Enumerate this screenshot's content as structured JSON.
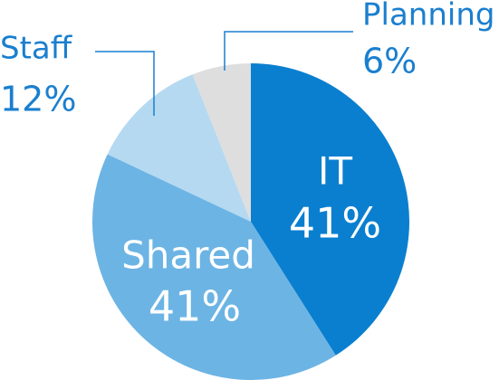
{
  "chart_data": {
    "type": "pie",
    "categories": [
      "IT",
      "Shared",
      "Staff",
      "Planning"
    ],
    "values": [
      41,
      41,
      12,
      6
    ],
    "value_labels": [
      "41%",
      "41%",
      "12%",
      "6%"
    ],
    "colors": [
      "#0a7fcf",
      "#6cb4e4",
      "#b5d9f1",
      "#dedede"
    ]
  }
}
